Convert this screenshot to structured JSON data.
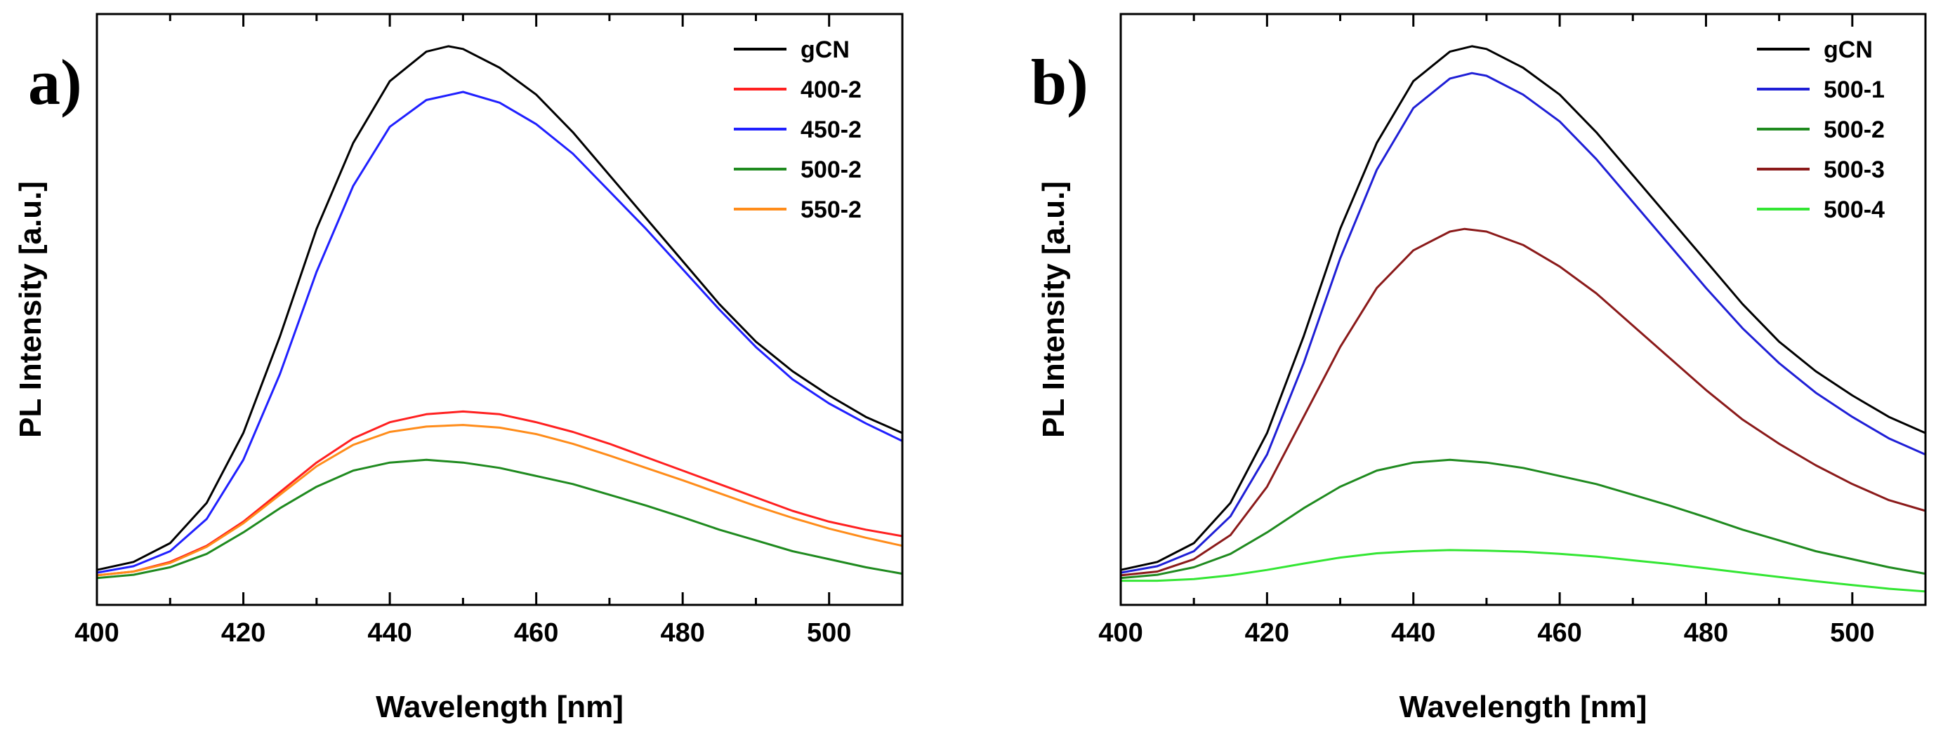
{
  "chart_data": [
    {
      "type": "line",
      "panel_label": "a)",
      "xlabel": "Wavelength [nm]",
      "ylabel": "PL Intensity [a.u.]",
      "xlim": [
        400,
        510
      ],
      "ylim": [
        0,
        1.1
      ],
      "xticks": [
        400,
        420,
        440,
        460,
        480,
        500
      ],
      "show_yticks": false,
      "legend_position": "top-right",
      "series": [
        {
          "name": "gCN",
          "color": "#000000",
          "x": [
            400,
            405,
            410,
            415,
            420,
            425,
            430,
            435,
            440,
            445,
            448,
            450,
            455,
            460,
            465,
            470,
            475,
            480,
            485,
            490,
            495,
            500,
            505,
            510
          ],
          "y": [
            0.065,
            0.08,
            0.115,
            0.19,
            0.32,
            0.5,
            0.7,
            0.86,
            0.975,
            1.03,
            1.04,
            1.035,
            1.0,
            0.95,
            0.88,
            0.8,
            0.72,
            0.64,
            0.56,
            0.49,
            0.435,
            0.39,
            0.35,
            0.32
          ]
        },
        {
          "name": "400-2",
          "color": "#ff2020",
          "x": [
            400,
            405,
            410,
            415,
            420,
            425,
            430,
            435,
            440,
            445,
            450,
            455,
            460,
            465,
            470,
            475,
            480,
            485,
            490,
            495,
            500,
            505,
            510
          ],
          "y": [
            0.055,
            0.062,
            0.08,
            0.11,
            0.155,
            0.21,
            0.265,
            0.31,
            0.34,
            0.355,
            0.36,
            0.355,
            0.34,
            0.322,
            0.3,
            0.275,
            0.25,
            0.225,
            0.2,
            0.175,
            0.155,
            0.14,
            0.128
          ]
        },
        {
          "name": "450-2",
          "color": "#2020ff",
          "x": [
            400,
            405,
            410,
            415,
            420,
            425,
            430,
            435,
            440,
            445,
            450,
            455,
            460,
            465,
            470,
            475,
            480,
            485,
            490,
            495,
            500,
            505,
            510
          ],
          "y": [
            0.06,
            0.072,
            0.1,
            0.16,
            0.27,
            0.43,
            0.62,
            0.78,
            0.89,
            0.94,
            0.955,
            0.935,
            0.895,
            0.84,
            0.77,
            0.7,
            0.625,
            0.55,
            0.48,
            0.42,
            0.375,
            0.338,
            0.305
          ]
        },
        {
          "name": "500-2",
          "color": "#1f8a1f",
          "x": [
            400,
            405,
            410,
            415,
            420,
            425,
            430,
            435,
            440,
            445,
            450,
            455,
            460,
            465,
            470,
            475,
            480,
            485,
            490,
            495,
            500,
            505,
            510
          ],
          "y": [
            0.05,
            0.056,
            0.07,
            0.095,
            0.135,
            0.18,
            0.22,
            0.25,
            0.265,
            0.27,
            0.265,
            0.255,
            0.24,
            0.225,
            0.205,
            0.185,
            0.163,
            0.14,
            0.12,
            0.1,
            0.085,
            0.07,
            0.058
          ]
        },
        {
          "name": "550-2",
          "color": "#ff8c1a",
          "x": [
            400,
            405,
            410,
            415,
            420,
            425,
            430,
            435,
            440,
            445,
            450,
            455,
            460,
            465,
            470,
            475,
            480,
            485,
            490,
            495,
            500,
            505,
            510
          ],
          "y": [
            0.055,
            0.062,
            0.078,
            0.108,
            0.152,
            0.205,
            0.258,
            0.298,
            0.322,
            0.332,
            0.335,
            0.33,
            0.318,
            0.3,
            0.278,
            0.255,
            0.232,
            0.208,
            0.184,
            0.162,
            0.142,
            0.125,
            0.11
          ]
        }
      ]
    },
    {
      "type": "line",
      "panel_label": "b)",
      "xlabel": "Wavelength [nm]",
      "ylabel": "PL Intensity [a.u.]",
      "xlim": [
        400,
        510
      ],
      "ylim": [
        0,
        1.1
      ],
      "xticks": [
        400,
        420,
        440,
        460,
        480,
        500
      ],
      "show_yticks": false,
      "legend_position": "top-right",
      "series": [
        {
          "name": "gCN",
          "color": "#000000",
          "x": [
            400,
            405,
            410,
            415,
            420,
            425,
            430,
            435,
            440,
            445,
            448,
            450,
            455,
            460,
            465,
            470,
            475,
            480,
            485,
            490,
            495,
            500,
            505,
            510
          ],
          "y": [
            0.065,
            0.08,
            0.115,
            0.19,
            0.32,
            0.5,
            0.7,
            0.86,
            0.975,
            1.03,
            1.04,
            1.035,
            1.0,
            0.95,
            0.88,
            0.8,
            0.72,
            0.64,
            0.56,
            0.49,
            0.435,
            0.39,
            0.35,
            0.32
          ]
        },
        {
          "name": "500-1",
          "color": "#1f1fd6",
          "x": [
            400,
            405,
            410,
            415,
            420,
            425,
            430,
            435,
            440,
            445,
            448,
            450,
            455,
            460,
            465,
            470,
            475,
            480,
            485,
            490,
            495,
            500,
            505,
            510
          ],
          "y": [
            0.06,
            0.072,
            0.1,
            0.165,
            0.28,
            0.45,
            0.645,
            0.81,
            0.925,
            0.98,
            0.99,
            0.985,
            0.95,
            0.9,
            0.83,
            0.75,
            0.67,
            0.59,
            0.515,
            0.45,
            0.395,
            0.35,
            0.31,
            0.28
          ]
        },
        {
          "name": "500-2",
          "color": "#1f8a1f",
          "x": [
            400,
            405,
            410,
            415,
            420,
            425,
            430,
            435,
            440,
            445,
            450,
            455,
            460,
            465,
            470,
            475,
            480,
            485,
            490,
            495,
            500,
            505,
            510
          ],
          "y": [
            0.05,
            0.056,
            0.07,
            0.095,
            0.135,
            0.18,
            0.22,
            0.25,
            0.265,
            0.27,
            0.265,
            0.255,
            0.24,
            0.225,
            0.205,
            0.185,
            0.163,
            0.14,
            0.12,
            0.1,
            0.085,
            0.07,
            0.058
          ]
        },
        {
          "name": "500-3",
          "color": "#8b1a1a",
          "x": [
            400,
            405,
            410,
            415,
            420,
            425,
            430,
            435,
            440,
            445,
            447,
            450,
            455,
            460,
            465,
            470,
            475,
            480,
            485,
            490,
            495,
            500,
            505,
            510
          ],
          "y": [
            0.055,
            0.062,
            0.085,
            0.13,
            0.22,
            0.35,
            0.48,
            0.59,
            0.66,
            0.695,
            0.7,
            0.695,
            0.67,
            0.63,
            0.58,
            0.52,
            0.46,
            0.4,
            0.345,
            0.3,
            0.26,
            0.225,
            0.195,
            0.175
          ]
        },
        {
          "name": "500-4",
          "color": "#33e633",
          "x": [
            400,
            405,
            410,
            415,
            420,
            425,
            430,
            435,
            440,
            445,
            450,
            455,
            460,
            465,
            470,
            475,
            480,
            485,
            490,
            495,
            500,
            505,
            510
          ],
          "y": [
            0.045,
            0.045,
            0.048,
            0.055,
            0.065,
            0.077,
            0.088,
            0.096,
            0.1,
            0.102,
            0.101,
            0.099,
            0.095,
            0.09,
            0.083,
            0.076,
            0.068,
            0.06,
            0.052,
            0.044,
            0.037,
            0.03,
            0.025
          ]
        }
      ]
    }
  ]
}
